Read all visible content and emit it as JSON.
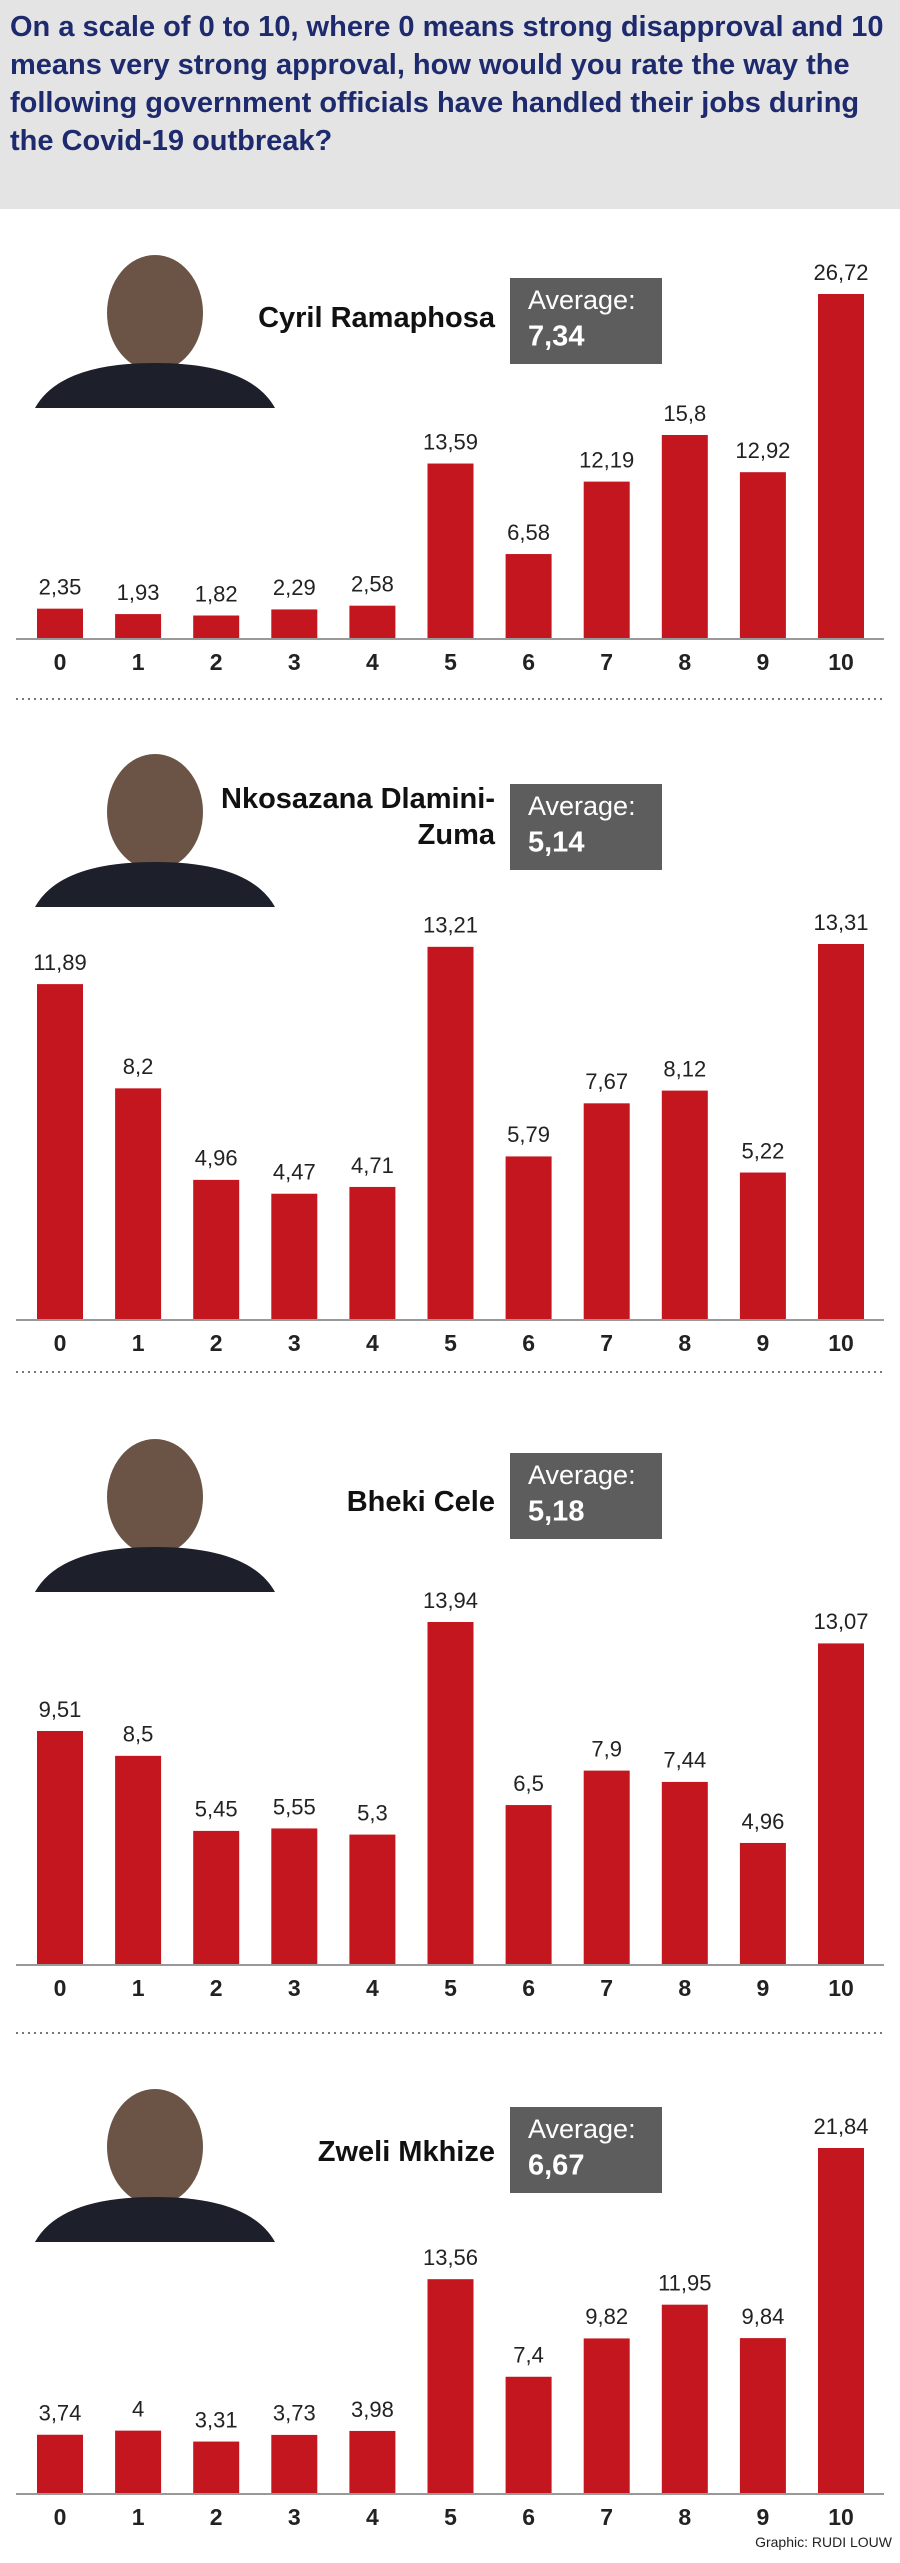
{
  "title": "On a scale of 0 to 10, where 0 means strong disapproval and 10 means very strong approval, how would you rate the way the following government officials have handled their jobs during the Covid-19 outbreak?",
  "credit": "Graphic: RUDI LOUW",
  "chart_data": [
    {
      "type": "bar",
      "title": "Cyril Ramaphosa",
      "color": "#c3161f",
      "average": {
        "text": "Average:",
        "value": "7,34"
      },
      "categories": [
        "0",
        "1",
        "2",
        "3",
        "4",
        "5",
        "6",
        "7",
        "8",
        "9",
        "10"
      ],
      "values": [
        2.35,
        1.93,
        1.82,
        2.29,
        2.58,
        13.59,
        6.58,
        12.19,
        15.8,
        12.92,
        26.72
      ],
      "value_labels": [
        "2,35",
        "1,93",
        "1,82",
        "2,29",
        "2,58",
        "13,59",
        "6,58",
        "12,19",
        "15,8",
        "12,92",
        "26,72"
      ]
    },
    {
      "type": "bar",
      "title": "Nkosazana Dlamini-Zuma",
      "color": "#c3161f",
      "average": {
        "text": "Average:",
        "value": "5,14"
      },
      "categories": [
        "0",
        "1",
        "2",
        "3",
        "4",
        "5",
        "6",
        "7",
        "8",
        "9",
        "10"
      ],
      "values": [
        11.89,
        8.2,
        4.96,
        4.47,
        4.71,
        13.21,
        5.79,
        7.67,
        8.12,
        5.22,
        13.31
      ],
      "value_labels": [
        "11,89",
        "8,2",
        "4,96",
        "4,47",
        "4,71",
        "13,21",
        "5,79",
        "7,67",
        "8,12",
        "5,22",
        "13,31"
      ]
    },
    {
      "type": "bar",
      "title": "Bheki Cele",
      "color": "#c3161f",
      "average": {
        "text": "Average:",
        "value": "5,18"
      },
      "categories": [
        "0",
        "1",
        "2",
        "3",
        "4",
        "5",
        "6",
        "7",
        "8",
        "9",
        "10"
      ],
      "values": [
        9.51,
        8.5,
        5.45,
        5.55,
        5.3,
        13.94,
        6.5,
        7.9,
        7.44,
        4.96,
        13.07
      ],
      "value_labels": [
        "9,51",
        "8,5",
        "5,45",
        "5,55",
        "5,3",
        "13,94",
        "6,5",
        "7,9",
        "7,44",
        "4,96",
        "13,07"
      ]
    },
    {
      "type": "bar",
      "title": "Zweli Mkhize",
      "color": "#c3161f",
      "average": {
        "text": "Average:",
        "value": "6,67"
      },
      "categories": [
        "0",
        "1",
        "2",
        "3",
        "4",
        "5",
        "6",
        "7",
        "8",
        "9",
        "10"
      ],
      "values": [
        3.74,
        4,
        3.31,
        3.73,
        3.98,
        13.56,
        7.4,
        9.82,
        11.95,
        9.84,
        21.84
      ],
      "value_labels": [
        "3,74",
        "4",
        "3,31",
        "3,73",
        "3,98",
        "13,56",
        "7,4",
        "9,82",
        "11,95",
        "9,84",
        "21,84"
      ]
    }
  ]
}
